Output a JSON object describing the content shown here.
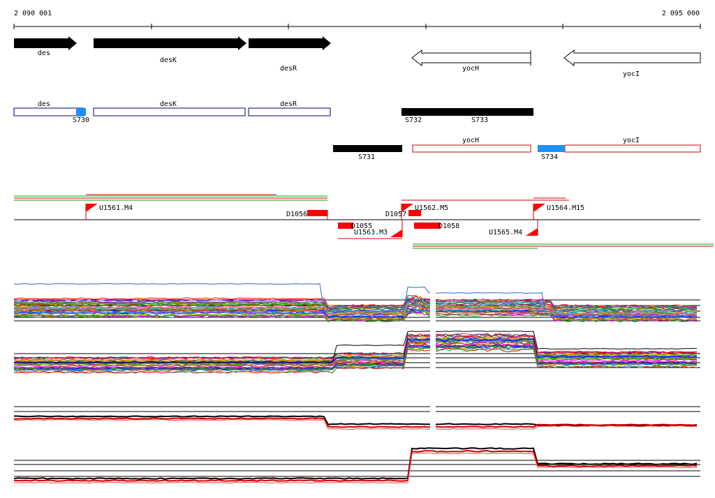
{
  "ruler": {
    "start_label": "2 090 001",
    "end_label": "2 095 000"
  },
  "genes": [
    {
      "id": "des",
      "label": "des",
      "strand": "+"
    },
    {
      "id": "desK",
      "label": "desK",
      "strand": "+"
    },
    {
      "id": "desR",
      "label": "desR",
      "strand": "+"
    },
    {
      "id": "yocH",
      "label": "yocH",
      "strand": "-"
    },
    {
      "id": "yocI",
      "label": "yocI",
      "strand": "-"
    }
  ],
  "segments_plus": [
    {
      "id": "des",
      "label": "des"
    },
    {
      "id": "desK",
      "label": "desK"
    },
    {
      "id": "desR",
      "label": "desR"
    },
    {
      "id": "S730",
      "label": "S730"
    },
    {
      "id": "S732",
      "label": "S732"
    },
    {
      "id": "S733",
      "label": "S733"
    }
  ],
  "segments_minus": [
    {
      "id": "S731",
      "label": "S731"
    },
    {
      "id": "yocH",
      "label": "yocH"
    },
    {
      "id": "yocI",
      "label": "yocI"
    },
    {
      "id": "S734",
      "label": "S734"
    }
  ],
  "upshifts_top": [
    {
      "id": "U1561.M4",
      "label": "U1561.M4"
    },
    {
      "id": "U1562.M5",
      "label": "U1562.M5"
    },
    {
      "id": "U1564.M15",
      "label": "U1564.M15"
    }
  ],
  "upshifts_bottom": [
    {
      "id": "U1563.M3",
      "label": "U1563.M3"
    },
    {
      "id": "U1565.M4",
      "label": "U1565.M4"
    }
  ],
  "downshifts": [
    {
      "id": "D1056",
      "label": "D1056"
    },
    {
      "id": "D1057",
      "label": "D1057"
    },
    {
      "id": "D1055",
      "label": "D1055"
    },
    {
      "id": "D1058",
      "label": "D1058"
    }
  ],
  "colors": {
    "gene_fill": "#000000",
    "plus_outline": "#000080",
    "minus_outline": "#cc0000",
    "segment_accent": "#1e90ff",
    "shift_flag": "#ff0000",
    "track_green": "#00aa00",
    "track_red": "#cc0000"
  }
}
